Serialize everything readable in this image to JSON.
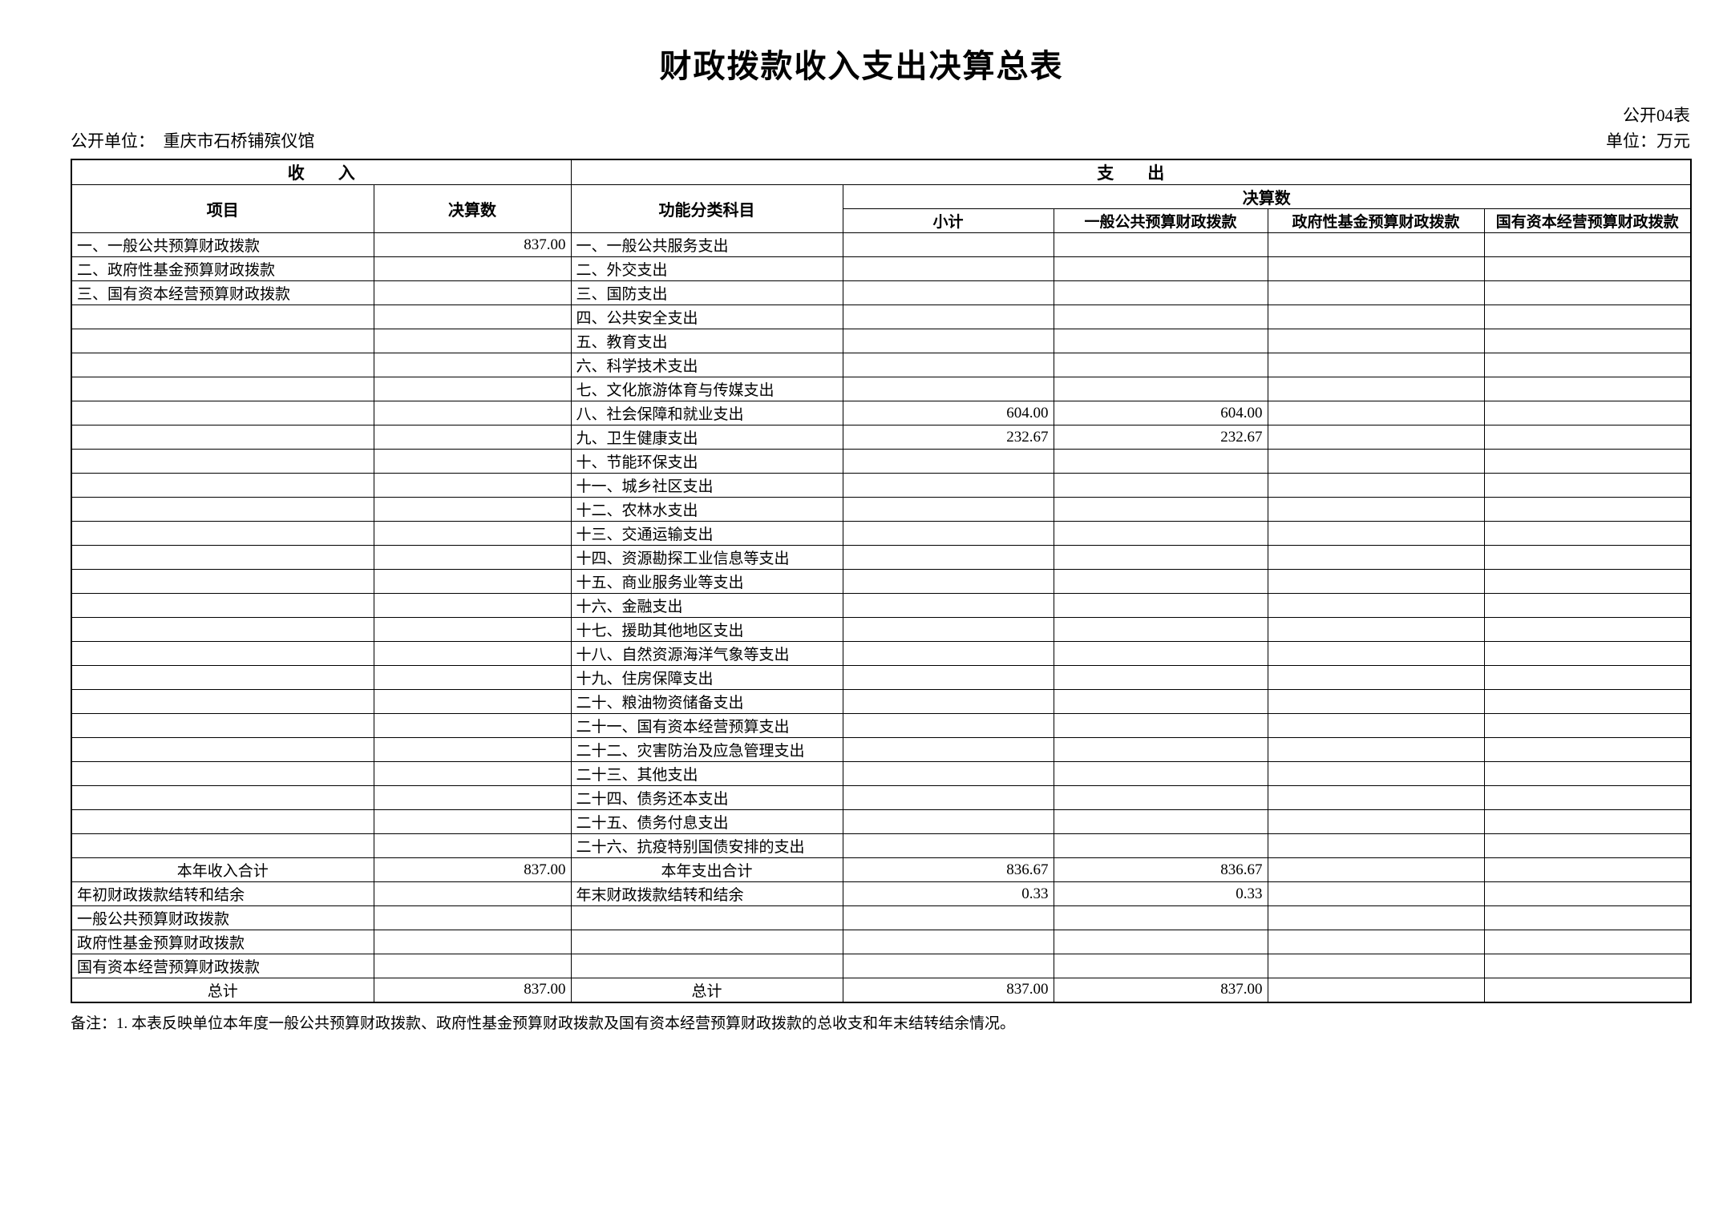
{
  "page": {
    "title": "财政拨款收入支出决算总表",
    "form_code": "公开04表",
    "publisher": "公开单位：　重庆市石桥铺殡仪馆",
    "unit_label": "单位：万元",
    "note": "备注：1. 本表反映单位本年度一般公共预算财政拨款、政府性基金预算财政拨款及国有资本经营预算财政拨款的总收支和年末结转结余情况。"
  },
  "table": {
    "header": {
      "income_group": "收　　入",
      "expense_group": "支　　出",
      "income_item_col": "项目",
      "income_value_col": "决算数",
      "expense_item_col": "功能分类科目",
      "expense_value_group": "决算数",
      "subtotal_col": "小计",
      "general_budget_col": "一般公共预算财政拨款",
      "gov_fund_col": "政府性基金预算财政拨款",
      "state_capital_col": "国有资本经营预算财政拨款"
    },
    "body_rows": [
      {
        "in_label": "一、一般公共预算财政拨款",
        "in_style": "",
        "in_value": "837.00",
        "ex_label": "一、一般公共服务支出",
        "ex_style": "",
        "ex_values": [
          "",
          "",
          "",
          ""
        ]
      },
      {
        "in_label": "二、政府性基金预算财政拨款",
        "in_style": "",
        "in_value": "",
        "ex_label": "二、外交支出",
        "ex_style": "",
        "ex_values": [
          "",
          "",
          "",
          ""
        ]
      },
      {
        "in_label": "三、国有资本经营预算财政拨款",
        "in_style": "",
        "in_value": "",
        "ex_label": "三、国防支出",
        "ex_style": "",
        "ex_values": [
          "",
          "",
          "",
          ""
        ]
      },
      {
        "in_label": "",
        "in_style": "",
        "in_value": "",
        "ex_label": "四、公共安全支出",
        "ex_style": "",
        "ex_values": [
          "",
          "",
          "",
          ""
        ]
      },
      {
        "in_label": "",
        "in_style": "",
        "in_value": "",
        "ex_label": "五、教育支出",
        "ex_style": "",
        "ex_values": [
          "",
          "",
          "",
          ""
        ]
      },
      {
        "in_label": "",
        "in_style": "",
        "in_value": "",
        "ex_label": "六、科学技术支出",
        "ex_style": "",
        "ex_values": [
          "",
          "",
          "",
          ""
        ]
      },
      {
        "in_label": "",
        "in_style": "",
        "in_value": "",
        "ex_label": "七、文化旅游体育与传媒支出",
        "ex_style": "",
        "ex_values": [
          "",
          "",
          "",
          ""
        ]
      },
      {
        "in_label": "",
        "in_style": "",
        "in_value": "",
        "ex_label": "八、社会保障和就业支出",
        "ex_style": "",
        "ex_values": [
          "604.00",
          "604.00",
          "",
          ""
        ]
      },
      {
        "in_label": "",
        "in_style": "",
        "in_value": "",
        "ex_label": "九、卫生健康支出",
        "ex_style": "",
        "ex_values": [
          "232.67",
          "232.67",
          "",
          ""
        ]
      },
      {
        "in_label": "",
        "in_style": "",
        "in_value": "",
        "ex_label": "十、节能环保支出",
        "ex_style": "",
        "ex_values": [
          "",
          "",
          "",
          ""
        ]
      },
      {
        "in_label": "",
        "in_style": "",
        "in_value": "",
        "ex_label": "十一、城乡社区支出",
        "ex_style": "",
        "ex_values": [
          "",
          "",
          "",
          ""
        ]
      },
      {
        "in_label": "",
        "in_style": "",
        "in_value": "",
        "ex_label": "十二、农林水支出",
        "ex_style": "",
        "ex_values": [
          "",
          "",
          "",
          ""
        ]
      },
      {
        "in_label": "",
        "in_style": "",
        "in_value": "",
        "ex_label": "十三、交通运输支出",
        "ex_style": "",
        "ex_values": [
          "",
          "",
          "",
          ""
        ]
      },
      {
        "in_label": "",
        "in_style": "",
        "in_value": "",
        "ex_label": "十四、资源勘探工业信息等支出",
        "ex_style": "",
        "ex_values": [
          "",
          "",
          "",
          ""
        ]
      },
      {
        "in_label": "",
        "in_style": "",
        "in_value": "",
        "ex_label": "十五、商业服务业等支出",
        "ex_style": "",
        "ex_values": [
          "",
          "",
          "",
          ""
        ]
      },
      {
        "in_label": "",
        "in_style": "",
        "in_value": "",
        "ex_label": "十六、金融支出",
        "ex_style": "",
        "ex_values": [
          "",
          "",
          "",
          ""
        ]
      },
      {
        "in_label": "",
        "in_style": "",
        "in_value": "",
        "ex_label": "十七、援助其他地区支出",
        "ex_style": "",
        "ex_values": [
          "",
          "",
          "",
          ""
        ]
      },
      {
        "in_label": "",
        "in_style": "",
        "in_value": "",
        "ex_label": "十八、自然资源海洋气象等支出",
        "ex_style": "",
        "ex_values": [
          "",
          "",
          "",
          ""
        ]
      },
      {
        "in_label": "",
        "in_style": "",
        "in_value": "",
        "ex_label": "十九、住房保障支出",
        "ex_style": "",
        "ex_values": [
          "",
          "",
          "",
          ""
        ]
      },
      {
        "in_label": "",
        "in_style": "",
        "in_value": "",
        "ex_label": "二十、粮油物资储备支出",
        "ex_style": "",
        "ex_values": [
          "",
          "",
          "",
          ""
        ]
      },
      {
        "in_label": "",
        "in_style": "",
        "in_value": "",
        "ex_label": "二十一、国有资本经营预算支出",
        "ex_style": "",
        "ex_values": [
          "",
          "",
          "",
          ""
        ]
      },
      {
        "in_label": "",
        "in_style": "",
        "in_value": "",
        "ex_label": "二十二、灾害防治及应急管理支出",
        "ex_style": "",
        "ex_values": [
          "",
          "",
          "",
          ""
        ]
      },
      {
        "in_label": "",
        "in_style": "",
        "in_value": "",
        "ex_label": "二十三、其他支出",
        "ex_style": "",
        "ex_values": [
          "",
          "",
          "",
          ""
        ]
      },
      {
        "in_label": "",
        "in_style": "",
        "in_value": "",
        "ex_label": "二十四、债务还本支出",
        "ex_style": "",
        "ex_values": [
          "",
          "",
          "",
          ""
        ]
      },
      {
        "in_label": "",
        "in_style": "",
        "in_value": "",
        "ex_label": "二十五、债务付息支出",
        "ex_style": "",
        "ex_values": [
          "",
          "",
          "",
          ""
        ]
      },
      {
        "in_label": "",
        "in_style": "",
        "in_value": "",
        "ex_label": "二十六、抗疫特别国债安排的支出",
        "ex_style": "",
        "ex_values": [
          "",
          "",
          "",
          ""
        ]
      },
      {
        "in_label": "本年收入合计",
        "in_style": "total",
        "in_value": "837.00",
        "ex_label": "本年支出合计",
        "ex_style": "total",
        "ex_values": [
          "836.67",
          "836.67",
          "",
          ""
        ]
      },
      {
        "in_label": "年初财政拨款结转和结余",
        "in_style": "",
        "in_value": "",
        "ex_label": "年末财政拨款结转和结余",
        "ex_style": "",
        "ex_values": [
          "0.33",
          "0.33",
          "",
          ""
        ]
      },
      {
        "in_label": "一般公共预算财政拨款",
        "in_style": "sub",
        "in_value": "",
        "ex_label": "",
        "ex_style": "",
        "ex_values": [
          "",
          "",
          "",
          ""
        ]
      },
      {
        "in_label": "政府性基金预算财政拨款",
        "in_style": "sub",
        "in_value": "",
        "ex_label": "",
        "ex_style": "",
        "ex_values": [
          "",
          "",
          "",
          ""
        ]
      },
      {
        "in_label": "国有资本经营预算财政拨款",
        "in_style": "sub",
        "in_value": "",
        "ex_label": "",
        "ex_style": "",
        "ex_values": [
          "",
          "",
          "",
          ""
        ]
      },
      {
        "in_label": "总计",
        "in_style": "total",
        "in_value": "837.00",
        "ex_label": "总计",
        "ex_style": "total",
        "ex_values": [
          "837.00",
          "837.00",
          "",
          ""
        ]
      }
    ]
  },
  "colors": {
    "background": "#ffffff",
    "text": "#000000",
    "border": "#000000"
  }
}
